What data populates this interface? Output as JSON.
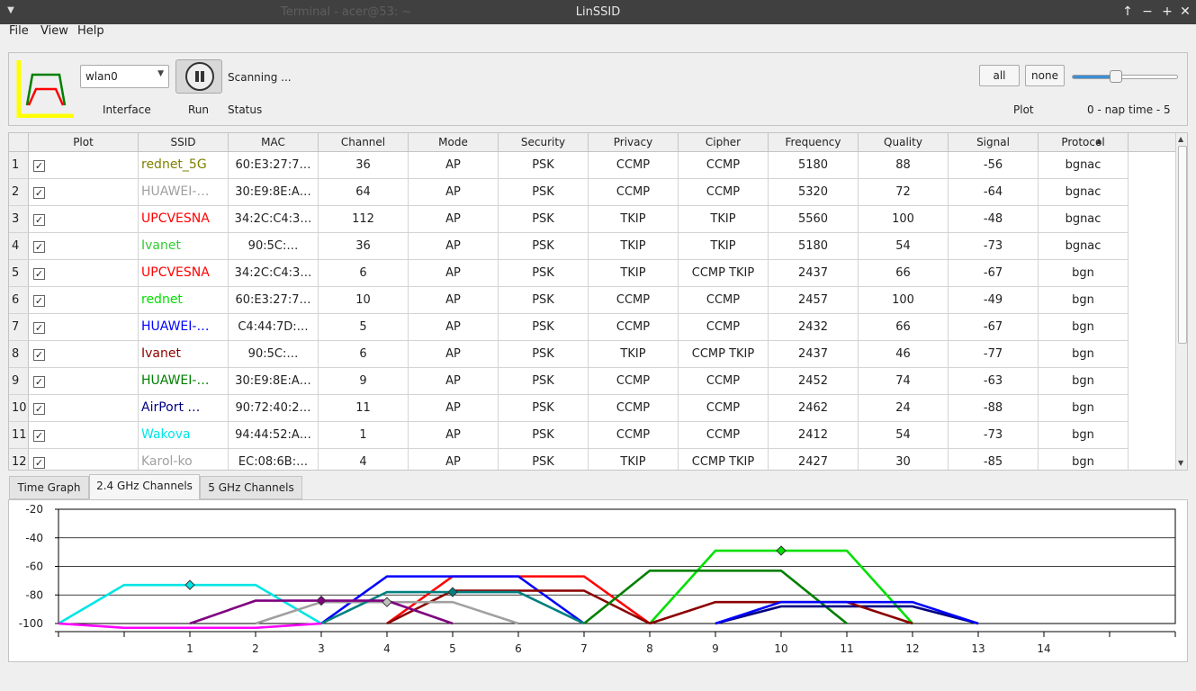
{
  "window": {
    "title": "LinSSID",
    "background_title": "Terminal - acer@53: ~"
  },
  "menu": [
    "File",
    "View",
    "Help"
  ],
  "toolbar": {
    "interface_value": "wlan0",
    "interface_label": "Interface",
    "run_label": "Run",
    "status_value": "Scanning ...",
    "status_label": "Status",
    "plot_all": "all",
    "plot_none": "none",
    "plot_label": "Plot",
    "nap_label": "0 - nap time - 5",
    "nap_level": 0.4
  },
  "table": {
    "columns": [
      "Plot",
      "SSID",
      "MAC",
      "Channel",
      "Mode",
      "Security",
      "Privacy",
      "Cipher",
      "Frequency",
      "Quality",
      "Signal",
      "Protocol"
    ],
    "sort_indicator": "▲",
    "rows": [
      {
        "n": "1",
        "ssid": "rednet_5G",
        "color": "#808000",
        "mac": "60:E3:27:7…",
        "channel": "36",
        "mode": "AP",
        "security": "PSK",
        "privacy": "CCMP",
        "cipher": "CCMP",
        "frequency": "5180",
        "quality": "88",
        "signal": "-56",
        "protocol": "bgnac"
      },
      {
        "n": "2",
        "ssid": "HUAWEI-…",
        "color": "#a0a0a0",
        "mac": "30:E9:8E:A…",
        "channel": "64",
        "mode": "AP",
        "security": "PSK",
        "privacy": "CCMP",
        "cipher": "CCMP",
        "frequency": "5320",
        "quality": "72",
        "signal": "-64",
        "protocol": "bgnac"
      },
      {
        "n": "3",
        "ssid": "UPCVESNA",
        "color": "#ff0000",
        "mac": "34:2C:C4:3…",
        "channel": "112",
        "mode": "AP",
        "security": "PSK",
        "privacy": "TKIP",
        "cipher": "TKIP",
        "frequency": "5560",
        "quality": "100",
        "signal": "-48",
        "protocol": "bgnac"
      },
      {
        "n": "4",
        "ssid": "Ivanet",
        "color": "#33cc33",
        "mac": "90:5C:…",
        "channel": "36",
        "mode": "AP",
        "security": "PSK",
        "privacy": "TKIP",
        "cipher": "TKIP",
        "frequency": "5180",
        "quality": "54",
        "signal": "-73",
        "protocol": "bgnac"
      },
      {
        "n": "5",
        "ssid": "UPCVESNA",
        "color": "#ff0000",
        "mac": "34:2C:C4:3…",
        "channel": "6",
        "mode": "AP",
        "security": "PSK",
        "privacy": "TKIP",
        "cipher": "CCMP TKIP",
        "frequency": "2437",
        "quality": "66",
        "signal": "-67",
        "protocol": "bgn"
      },
      {
        "n": "6",
        "ssid": "rednet",
        "color": "#00e000",
        "mac": "60:E3:27:7…",
        "channel": "10",
        "mode": "AP",
        "security": "PSK",
        "privacy": "CCMP",
        "cipher": "CCMP",
        "frequency": "2457",
        "quality": "100",
        "signal": "-49",
        "protocol": "bgn"
      },
      {
        "n": "7",
        "ssid": "HUAWEI-…",
        "color": "#0000ff",
        "mac": "C4:44:7D:…",
        "channel": "5",
        "mode": "AP",
        "security": "PSK",
        "privacy": "CCMP",
        "cipher": "CCMP",
        "frequency": "2432",
        "quality": "66",
        "signal": "-67",
        "protocol": "bgn"
      },
      {
        "n": "8",
        "ssid": "Ivanet",
        "color": "#8b0000",
        "mac": "90:5C:…",
        "channel": "6",
        "mode": "AP",
        "security": "PSK",
        "privacy": "TKIP",
        "cipher": "CCMP TKIP",
        "frequency": "2437",
        "quality": "46",
        "signal": "-77",
        "protocol": "bgn"
      },
      {
        "n": "9",
        "ssid": "HUAWEI-…",
        "color": "#008000",
        "mac": "30:E9:8E:A…",
        "channel": "9",
        "mode": "AP",
        "security": "PSK",
        "privacy": "CCMP",
        "cipher": "CCMP",
        "frequency": "2452",
        "quality": "74",
        "signal": "-63",
        "protocol": "bgn"
      },
      {
        "n": "10",
        "ssid": "AirPort …",
        "color": "#000080",
        "mac": "90:72:40:2…",
        "channel": "11",
        "mode": "AP",
        "security": "PSK",
        "privacy": "CCMP",
        "cipher": "CCMP",
        "frequency": "2462",
        "quality": "24",
        "signal": "-88",
        "protocol": "bgn"
      },
      {
        "n": "11",
        "ssid": "Wakova",
        "color": "#00e5e5",
        "mac": "94:44:52:A…",
        "channel": "1",
        "mode": "AP",
        "security": "PSK",
        "privacy": "CCMP",
        "cipher": "CCMP",
        "frequency": "2412",
        "quality": "54",
        "signal": "-73",
        "protocol": "bgn"
      },
      {
        "n": "12",
        "ssid": "Karol-ko",
        "color": "#a0a0a0",
        "mac": "EC:08:6B:…",
        "channel": "4",
        "mode": "AP",
        "security": "PSK",
        "privacy": "TKIP",
        "cipher": "CCMP TKIP",
        "frequency": "2427",
        "quality": "30",
        "signal": "-85",
        "protocol": "bgn"
      }
    ]
  },
  "tabs": [
    "Time Graph",
    "2.4 GHz Channels",
    "5 GHz Channels"
  ],
  "active_tab": 1,
  "chart_data": {
    "type": "line",
    "ylim": [
      -100,
      -20
    ],
    "yticks": [
      "-20",
      "-40",
      "-60",
      "-80",
      "-100"
    ],
    "xlim": [
      -1,
      16
    ],
    "xticks": [
      "1",
      "2",
      "3",
      "4",
      "5",
      "6",
      "7",
      "8",
      "9",
      "10",
      "11",
      "12",
      "13",
      "14"
    ],
    "grid": true,
    "series": [
      {
        "color": "#ff0000",
        "channel": 6,
        "signal": -67
      },
      {
        "color": "#00e000",
        "channel": 10,
        "signal": -49
      },
      {
        "color": "#0000ff",
        "channel": 5,
        "signal": -67
      },
      {
        "color": "#8b0000",
        "channel": 6,
        "signal": -77
      },
      {
        "color": "#008000",
        "channel": 9,
        "signal": -63
      },
      {
        "color": "#000080",
        "channel": 11,
        "signal": -88
      },
      {
        "color": "#00e5e5",
        "channel": 1,
        "signal": -73
      },
      {
        "color": "#a0a0a0",
        "channel": 4,
        "signal": -85
      },
      {
        "color": "#008080",
        "channel": 5,
        "signal": -78
      },
      {
        "color": "#800080",
        "channel": 3,
        "signal": -84
      },
      {
        "color": "#ff00ff",
        "channel": 1,
        "signal": -103
      },
      {
        "color": "#8b0000",
        "channel": 10,
        "signal": -85
      },
      {
        "color": "#0000ff",
        "channel": 11,
        "signal": -85
      }
    ],
    "markers": [
      {
        "channel": 1,
        "signal": -73,
        "color": "#00e5e5"
      },
      {
        "channel": 3,
        "signal": -84,
        "color": "#800080"
      },
      {
        "channel": 4,
        "signal": -85,
        "color": "#c0c0c0"
      },
      {
        "channel": 5,
        "signal": -78,
        "color": "#008080"
      },
      {
        "channel": 10,
        "signal": -49,
        "color": "#00e000"
      }
    ]
  }
}
